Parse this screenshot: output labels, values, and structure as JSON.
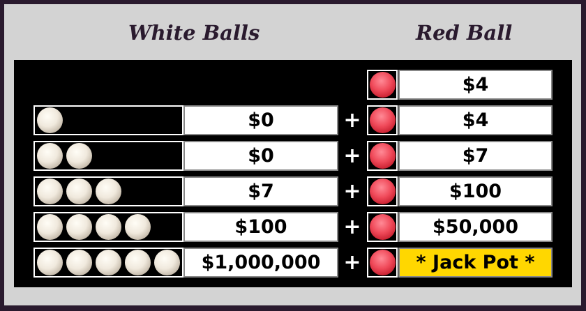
{
  "headers": {
    "white": "White Balls",
    "red": "Red Ball"
  },
  "colors": {
    "border": "#2a1a2e",
    "panel": "#d3d3d3",
    "board": "#000000",
    "jackpot": "#ffd700"
  },
  "plus_symbol": "+",
  "rows": [
    {
      "white_balls": 0,
      "white_prize": null,
      "red_prize": "$4"
    },
    {
      "white_balls": 1,
      "white_prize": "$0",
      "red_prize": "$4"
    },
    {
      "white_balls": 2,
      "white_prize": "$0",
      "red_prize": "$7"
    },
    {
      "white_balls": 3,
      "white_prize": "$7",
      "red_prize": "$100"
    },
    {
      "white_balls": 4,
      "white_prize": "$100",
      "red_prize": "$50,000"
    },
    {
      "white_balls": 5,
      "white_prize": "$1,000,000",
      "red_prize": "* Jack Pot *"
    }
  ]
}
